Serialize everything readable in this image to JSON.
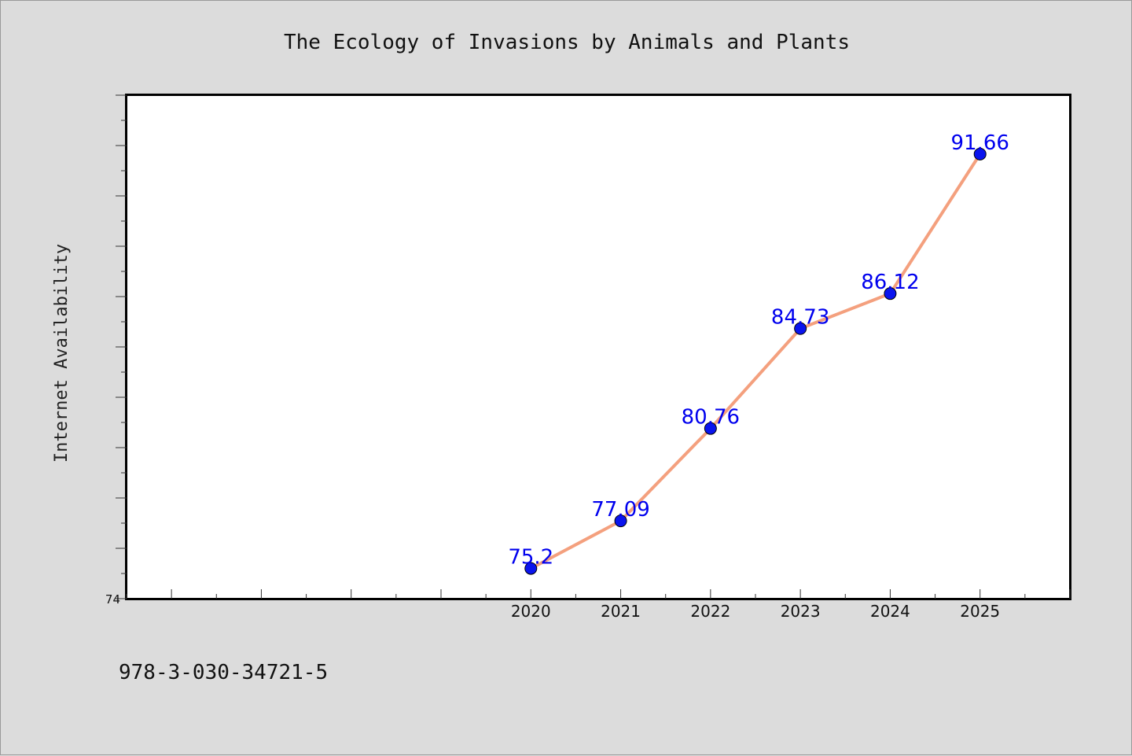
{
  "chart_data": {
    "type": "line",
    "title": "The Ecology of Invasions by Animals and Plants",
    "xlabel": "",
    "ylabel": "Internet Availability",
    "x": [
      "2020",
      "2021",
      "2022",
      "2023",
      "2024",
      "2025"
    ],
    "x_axis_extent": [
      2015.5,
      2026
    ],
    "ylim": [
      74,
      94
    ],
    "y_tick_labels": [
      "74"
    ],
    "series": [
      {
        "values": [
          75.2,
          77.09,
          80.76,
          84.73,
          86.12,
          91.66
        ]
      }
    ],
    "data_labels": [
      "75.2",
      "77.09",
      "80.76",
      "84.73",
      "86.12",
      "91.66"
    ],
    "grid": false,
    "line_color": "#f4a07e",
    "marker_color": "#0a14ee",
    "label_color": "#0000ee",
    "plot_background": "#ffffff",
    "page_background": "#dcdcdc"
  },
  "footer": {
    "isbn": "978-3-030-34721-5"
  }
}
